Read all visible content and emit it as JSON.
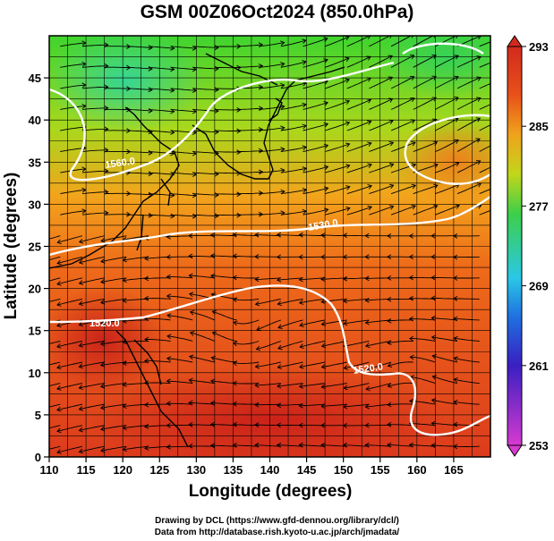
{
  "title": "GSM 00Z06Oct2024 (850.0hPa)",
  "x_axis": {
    "label": "Longitude (degrees)",
    "ticks": [
      "110",
      "115",
      "120",
      "125",
      "130",
      "135",
      "140",
      "145",
      "150",
      "155",
      "160",
      "165"
    ],
    "range": [
      110,
      170
    ]
  },
  "y_axis": {
    "label": "Latitude  (degrees)",
    "ticks": [
      "0",
      "5",
      "10",
      "15",
      "20",
      "25",
      "30",
      "35",
      "40",
      "45"
    ],
    "range": [
      0,
      50
    ]
  },
  "colorbar": {
    "labels": [
      "293",
      "285",
      "277",
      "269",
      "261",
      "253"
    ],
    "range": [
      253,
      293
    ],
    "colors": [
      "#d63ad0",
      "#3a1fc2",
      "#1f6fe0",
      "#2ac8e6",
      "#3ccf4a",
      "#c2d619",
      "#f0a21c",
      "#e8501a",
      "#d22a1e"
    ]
  },
  "contour_labels": [
    "1560.0",
    "1530.0",
    "1520.0",
    "1520.0"
  ],
  "credits": {
    "line1": "Drawing by DCL (https://www.gfd-dennou.org/library/dcl/)",
    "line2": "Data from http://database.rish.kyoto-u.ac.jp/arch/jmadata/"
  },
  "chart_data": {
    "type": "heatmap",
    "variable": "temperature (K) with wind streamlines and geopotential height contours",
    "xlabel": "Longitude (degrees)",
    "ylabel": "Latitude  (degrees)",
    "xlim": [
      110,
      170
    ],
    "ylim": [
      0,
      50
    ],
    "color_range": [
      253,
      293
    ],
    "contours": [
      {
        "label": "1560.0",
        "lon": 124,
        "lat": 35.5
      },
      {
        "label": "1530.0",
        "lon": 141,
        "lat": 29.5
      },
      {
        "label": "1520.0",
        "lon": 114,
        "lat": 16.5
      },
      {
        "label": "1520.0",
        "lon": 152,
        "lat": 10.5
      }
    ]
  }
}
